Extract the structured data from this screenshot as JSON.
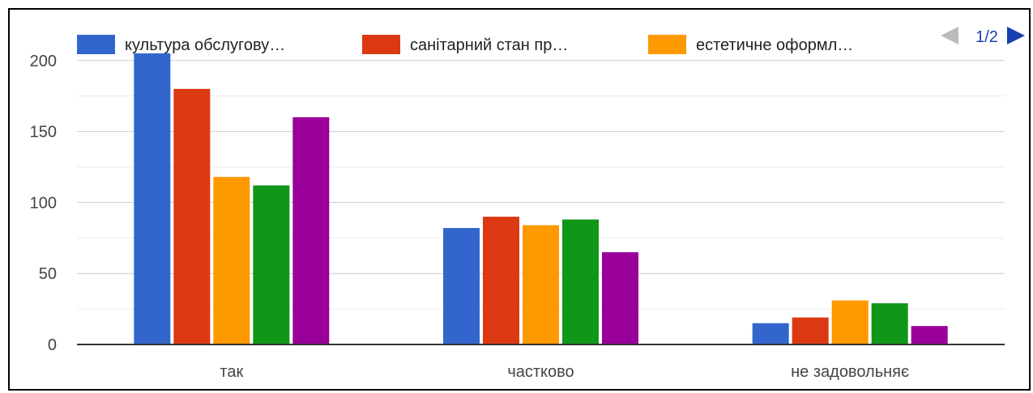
{
  "chart_data": {
    "type": "bar",
    "categories": [
      "так",
      "частково",
      "не задовольняє"
    ],
    "series": [
      {
        "name": "культура обслугову…",
        "color": "#3366cc",
        "values": [
          205,
          82,
          15
        ]
      },
      {
        "name": "санітарний стан пр…",
        "color": "#dc3912",
        "values": [
          180,
          90,
          19
        ]
      },
      {
        "name": "естетичне оформл…",
        "color": "#ff9900",
        "values": [
          118,
          84,
          31
        ]
      },
      {
        "color": "#109618",
        "values": [
          112,
          88,
          29
        ]
      },
      {
        "color": "#990099",
        "values": [
          160,
          65,
          13
        ]
      }
    ],
    "y_ticks": [
      "0",
      "50",
      "100",
      "150",
      "200"
    ],
    "ylim": [
      0,
      205
    ],
    "grid": true,
    "legend": {
      "position": "top",
      "page_indicator": "1/2"
    }
  }
}
